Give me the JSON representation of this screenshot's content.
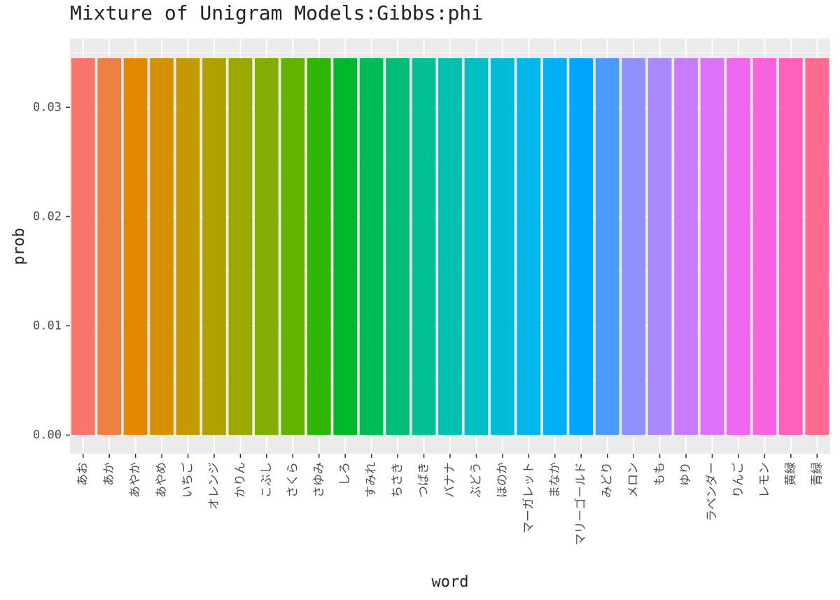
{
  "chart_data": {
    "type": "bar",
    "title": "Mixture of Unigram Models:Gibbs:phi",
    "x_label": "word",
    "y_label": "prob",
    "categories": [
      "あお",
      "あか",
      "あやか",
      "あやめ",
      "いちご",
      "オレンジ",
      "かりん",
      "こぶし",
      "さくら",
      "さゆみ",
      "しろ",
      "すみれ",
      "ちさき",
      "つばき",
      "バナナ",
      "ぶどう",
      "ほのか",
      "マーガレット",
      "まなか",
      "マリーゴールド",
      "みどり",
      "メロン",
      "もも",
      "ゆり",
      "ラベンダー",
      "りんご",
      "レモン",
      "黄緑",
      "青緑"
    ],
    "values": [
      0.0345,
      0.0345,
      0.0345,
      0.0345,
      0.0345,
      0.0345,
      0.0345,
      0.0345,
      0.0345,
      0.0345,
      0.0345,
      0.0345,
      0.0345,
      0.0345,
      0.0345,
      0.0345,
      0.0345,
      0.0345,
      0.0345,
      0.0345,
      0.0345,
      0.0345,
      0.0345,
      0.0345,
      0.0345,
      0.0345,
      0.0345,
      0.0345,
      0.0345
    ],
    "colors": [
      "#F8766D",
      "#EE8044",
      "#E38900",
      "#D59100",
      "#C49A00",
      "#B1A000",
      "#9CA700",
      "#83AD00",
      "#63B200",
      "#2EB600",
      "#00B92A",
      "#00BC56",
      "#00BE76",
      "#00C094",
      "#00C0AF",
      "#00BFC4",
      "#00BCD8",
      "#00B7E9",
      "#00B0F6",
      "#00A5FF",
      "#4B9BFF",
      "#8F91FF",
      "#AC88FF",
      "#C77CFF",
      "#DC71FA",
      "#EC69EF",
      "#F863DF",
      "#FF62BC",
      "#FF6C90"
    ],
    "ylim": [
      -0.0017,
      0.0363
    ],
    "yticks": [
      {
        "value": 0,
        "label": "0.00"
      },
      {
        "value": 0.01,
        "label": "0.01"
      },
      {
        "value": 0.02,
        "label": "0.02"
      },
      {
        "value": 0.03,
        "label": "0.03"
      }
    ],
    "minor_yticks": [
      0.005,
      0.015,
      0.025,
      0.035
    ],
    "grid": true
  }
}
